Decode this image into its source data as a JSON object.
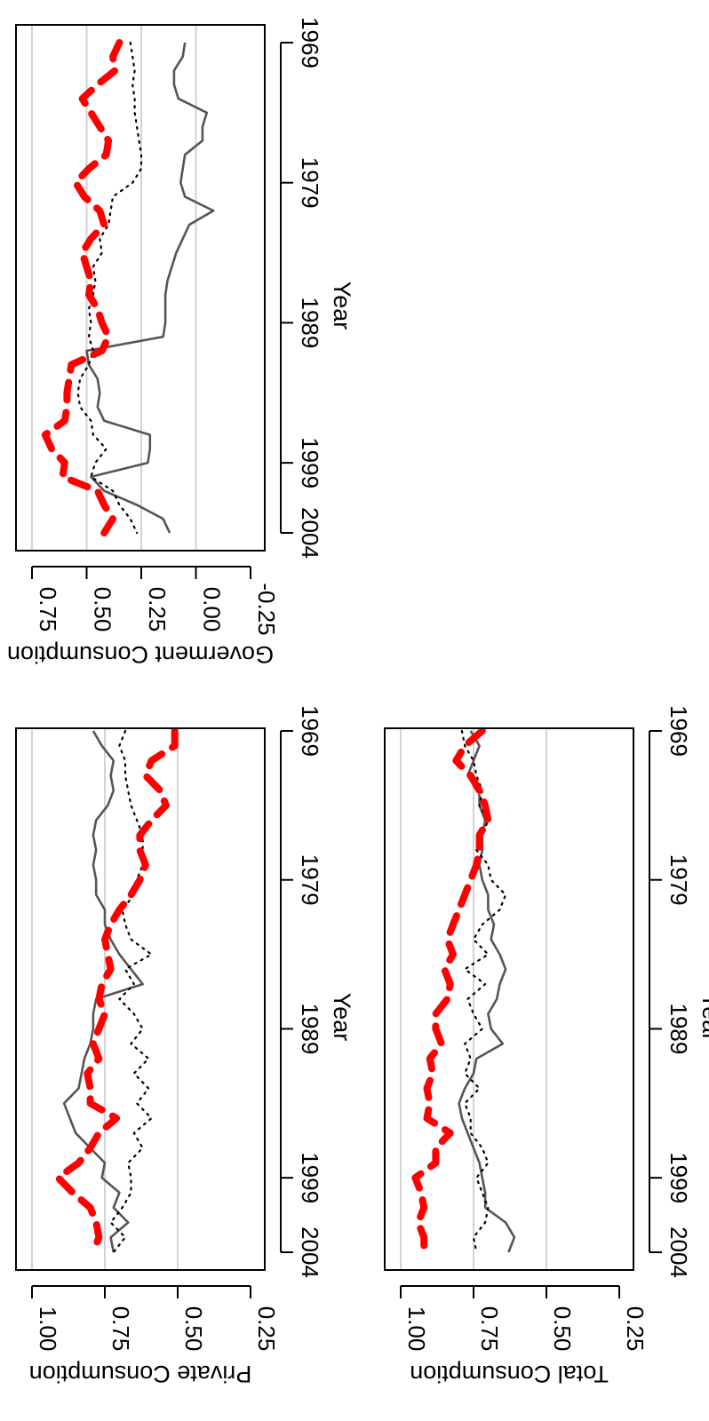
{
  "colors": {
    "solid": "#555555",
    "dotted": "#000000",
    "dashed": "#ff0000",
    "grid": "#d3d3d3",
    "frame": "#000000"
  },
  "chart_data": [
    {
      "type": "line",
      "ylabel": "Private Consumption",
      "xlabel": "Year",
      "xlim": [
        1969,
        2004
      ],
      "xticks": [
        1969,
        1979,
        1989,
        1999,
        2004
      ],
      "xtick_labels": [
        "1969",
        "1979",
        "1989",
        "1999",
        "2004"
      ],
      "ylim": [
        0.25,
        1.0
      ],
      "yticks": [
        0.25,
        0.5,
        0.75,
        1.0
      ],
      "ytick_labels": [
        "0.25",
        "0.50",
        "0.75",
        "1.00"
      ],
      "grid_y": [
        0.5,
        0.75,
        1.0
      ],
      "x": [
        1969,
        1970,
        1971,
        1972,
        1973,
        1974,
        1975,
        1976,
        1977,
        1978,
        1979,
        1980,
        1981,
        1982,
        1983,
        1984,
        1985,
        1986,
        1987,
        1988,
        1989,
        1990,
        1991,
        1992,
        1993,
        1994,
        1995,
        1996,
        1997,
        1998,
        1999,
        2000,
        2001,
        2002,
        2003,
        2004
      ],
      "series": [
        {
          "style": "solid",
          "values": [
            0.79,
            0.76,
            0.72,
            0.73,
            0.72,
            0.74,
            0.78,
            0.79,
            0.78,
            0.79,
            0.78,
            0.78,
            0.75,
            0.75,
            0.73,
            0.7,
            0.66,
            0.62,
            0.78,
            0.79,
            0.79,
            0.8,
            0.82,
            0.83,
            0.84,
            0.89,
            0.87,
            0.85,
            0.8,
            0.75,
            0.76,
            0.7,
            0.72,
            0.67,
            0.73,
            0.72
          ]
        },
        {
          "style": "dotted",
          "values": [
            0.68,
            0.7,
            0.68,
            0.68,
            0.67,
            0.66,
            0.64,
            0.62,
            0.62,
            0.62,
            0.64,
            0.65,
            0.69,
            0.68,
            0.66,
            0.59,
            0.68,
            0.65,
            0.7,
            0.65,
            0.62,
            0.66,
            0.6,
            0.65,
            0.6,
            0.64,
            0.59,
            0.65,
            0.62,
            0.67,
            0.66,
            0.66,
            0.69,
            0.73,
            0.68,
            0.72
          ]
        },
        {
          "style": "dashed",
          "values": [
            0.51,
            0.51,
            0.59,
            0.61,
            0.56,
            0.54,
            0.59,
            0.63,
            0.63,
            0.61,
            0.63,
            0.66,
            0.7,
            0.73,
            0.75,
            0.74,
            0.73,
            0.76,
            0.77,
            0.75,
            0.77,
            0.79,
            0.77,
            0.81,
            0.8,
            0.8,
            0.71,
            0.77,
            0.8,
            0.84,
            0.91,
            0.86,
            0.8,
            0.78,
            0.77,
            0.79
          ]
        }
      ]
    },
    {
      "type": "line",
      "ylabel": "Goverment Consumption",
      "xlabel": "Year",
      "xlim": [
        1969,
        2004
      ],
      "xticks": [
        1969,
        1979,
        1989,
        1999,
        2004
      ],
      "xtick_labels": [
        "1969",
        "1979",
        "1989",
        "1999",
        "2004"
      ],
      "ylim": [
        -0.25,
        0.75
      ],
      "yticks": [
        -0.25,
        0.0,
        0.25,
        0.5,
        0.75
      ],
      "ytick_labels": [
        "-0.25",
        "0.00",
        "0.25",
        "0.50",
        "0.75"
      ],
      "grid_y": [
        0.0,
        0.25,
        0.5,
        0.75
      ],
      "x": [
        1969,
        1970,
        1971,
        1972,
        1973,
        1974,
        1975,
        1976,
        1977,
        1978,
        1979,
        1980,
        1981,
        1982,
        1983,
        1984,
        1985,
        1986,
        1987,
        1988,
        1989,
        1990,
        1991,
        1992,
        1993,
        1994,
        1995,
        1996,
        1997,
        1998,
        1999,
        2000,
        2001,
        2002,
        2003,
        2004
      ],
      "series": [
        {
          "style": "solid",
          "values": [
            0.05,
            0.06,
            0.1,
            0.1,
            0.08,
            -0.05,
            -0.03,
            -0.03,
            0.05,
            0.06,
            0.07,
            0.05,
            -0.08,
            0.03,
            0.06,
            0.09,
            0.11,
            0.13,
            0.14,
            0.14,
            0.14,
            0.15,
            0.5,
            0.49,
            0.45,
            0.44,
            0.45,
            0.42,
            0.21,
            0.21,
            0.22,
            0.48,
            0.42,
            0.27,
            0.15,
            0.12
          ]
        },
        {
          "style": "dotted",
          "values": [
            0.3,
            0.29,
            0.28,
            0.29,
            0.28,
            0.28,
            0.27,
            0.26,
            0.25,
            0.25,
            0.29,
            0.38,
            0.39,
            0.4,
            0.44,
            0.43,
            0.47,
            0.46,
            0.47,
            0.49,
            0.48,
            0.49,
            0.47,
            0.49,
            0.53,
            0.54,
            0.53,
            0.48,
            0.47,
            0.41,
            0.46,
            0.48,
            0.38,
            0.35,
            0.3,
            0.27
          ]
        },
        {
          "style": "dashed",
          "values": [
            0.35,
            0.38,
            0.37,
            0.45,
            0.52,
            0.48,
            0.44,
            0.4,
            0.41,
            0.49,
            0.55,
            0.51,
            0.44,
            0.42,
            0.48,
            0.52,
            0.5,
            0.48,
            0.49,
            0.45,
            0.43,
            0.4,
            0.43,
            0.57,
            0.58,
            0.59,
            0.59,
            0.6,
            0.69,
            0.66,
            0.6,
            0.61,
            0.45,
            0.42,
            0.38,
            0.42
          ]
        }
      ]
    },
    {
      "type": "line",
      "ylabel": "Total Consumption",
      "xlabel": "Year",
      "xlim": [
        1969,
        2004
      ],
      "xticks": [
        1969,
        1979,
        1989,
        1999,
        2004
      ],
      "xtick_labels": [
        "1969",
        "1979",
        "1989",
        "1999",
        "2004"
      ],
      "ylim": [
        0.25,
        1.0
      ],
      "yticks": [
        0.25,
        0.5,
        0.75,
        1.0
      ],
      "ytick_labels": [
        "0.25",
        "0.50",
        "0.75",
        "1.00"
      ],
      "grid_y": [
        0.5,
        0.75,
        1.0
      ],
      "x": [
        1969,
        1970,
        1971,
        1972,
        1973,
        1974,
        1975,
        1976,
        1977,
        1978,
        1979,
        1980,
        1981,
        1982,
        1983,
        1984,
        1985,
        1986,
        1987,
        1988,
        1989,
        1990,
        1991,
        1992,
        1993,
        1994,
        1995,
        1996,
        1997,
        1998,
        1999,
        2000,
        2001,
        2002,
        2003,
        2004
      ],
      "series": [
        {
          "style": "solid",
          "values": [
            0.76,
            0.73,
            0.75,
            0.77,
            0.73,
            0.73,
            0.71,
            0.72,
            0.72,
            0.73,
            0.72,
            0.7,
            0.7,
            0.68,
            0.69,
            0.66,
            0.64,
            0.66,
            0.67,
            0.7,
            0.69,
            0.65,
            0.74,
            0.75,
            0.78,
            0.8,
            0.79,
            0.77,
            0.75,
            0.73,
            0.72,
            0.71,
            0.71,
            0.64,
            0.61,
            0.63
          ]
        },
        {
          "style": "dotted",
          "values": [
            0.79,
            0.78,
            0.75,
            0.74,
            0.72,
            0.73,
            0.7,
            0.72,
            0.74,
            0.7,
            0.69,
            0.64,
            0.66,
            0.72,
            0.75,
            0.7,
            0.78,
            0.71,
            0.77,
            0.75,
            0.72,
            0.78,
            0.76,
            0.78,
            0.73,
            0.78,
            0.76,
            0.76,
            0.72,
            0.7,
            0.74,
            0.72,
            0.7,
            0.71,
            0.75,
            0.74
          ]
        },
        {
          "style": "dashed",
          "values": [
            0.72,
            0.78,
            0.81,
            0.76,
            0.73,
            0.71,
            0.7,
            0.73,
            0.73,
            0.74,
            0.76,
            0.78,
            0.8,
            0.82,
            0.84,
            0.82,
            0.85,
            0.83,
            0.84,
            0.88,
            0.88,
            0.86,
            0.9,
            0.89,
            0.91,
            0.9,
            0.91,
            0.83,
            0.88,
            0.88,
            0.95,
            0.93,
            0.92,
            0.94,
            0.92,
            0.92
          ]
        }
      ]
    }
  ]
}
